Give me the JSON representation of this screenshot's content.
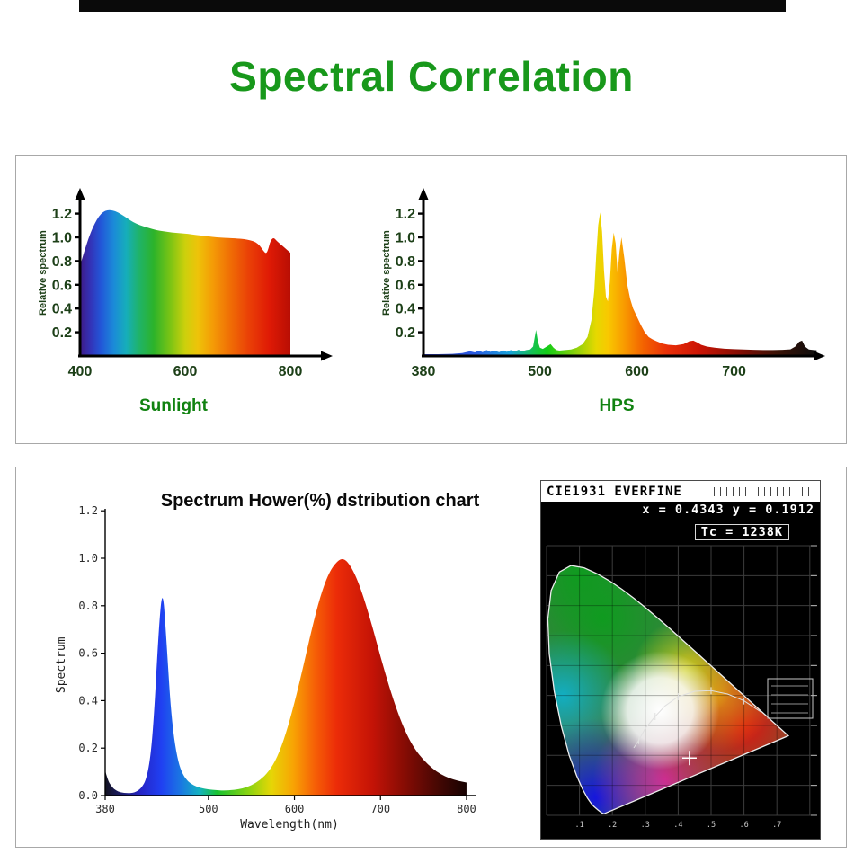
{
  "page_title": "Spectral Correlation",
  "colors": {
    "title_green": "#18981b",
    "caption_green": "#118211",
    "tick_green": "#1c3f17"
  },
  "chart_data": [
    {
      "type": "area",
      "title": "Sunlight",
      "xlabel": "",
      "ylabel": "Relative spectrum",
      "xlim": [
        400,
        860
      ],
      "ylim": [
        0,
        1.35
      ],
      "x_tick_labels": [
        "400",
        "600",
        "800"
      ],
      "y_tick_labels": [
        "0.2",
        "0.4",
        "0.6",
        "0.8",
        "1.0",
        "1.2"
      ],
      "x": [
        400,
        408,
        416,
        424,
        432,
        440,
        448,
        456,
        464,
        472,
        480,
        490,
        500,
        515,
        530,
        545,
        560,
        575,
        590,
        605,
        620,
        640,
        660,
        680,
        700,
        712,
        724,
        734,
        742,
        748,
        754,
        758,
        762,
        768,
        774,
        782,
        792,
        800
      ],
      "y": [
        0.76,
        0.88,
        0.99,
        1.08,
        1.15,
        1.2,
        1.225,
        1.23,
        1.225,
        1.21,
        1.19,
        1.16,
        1.13,
        1.1,
        1.08,
        1.06,
        1.05,
        1.04,
        1.035,
        1.03,
        1.02,
        1.01,
        1.0,
        0.995,
        0.99,
        0.985,
        0.975,
        0.96,
        0.93,
        0.89,
        0.86,
        0.9,
        0.97,
        1.0,
        0.97,
        0.94,
        0.9,
        0.87
      ]
    },
    {
      "type": "area",
      "title": "HPS",
      "xlabel": "",
      "ylabel": "Relative spectrum",
      "xlim": [
        380,
        800
      ],
      "ylim": [
        0,
        1.35
      ],
      "x_tick_labels": [
        "380",
        "500",
        "600",
        "700"
      ],
      "y_tick_labels": [
        "0.2",
        "0.4",
        "0.6",
        "0.8",
        "1.0",
        "1.2"
      ],
      "x": [
        380,
        395,
        410,
        420,
        428,
        433,
        437,
        441,
        445,
        449,
        453,
        458,
        462,
        466,
        470,
        474,
        478,
        482,
        486,
        490,
        493,
        496,
        498,
        500,
        503,
        507,
        511,
        514,
        517,
        520,
        526,
        532,
        538,
        544,
        549,
        553,
        556,
        558,
        560,
        562,
        564,
        566,
        568,
        570,
        572,
        574,
        576,
        578,
        580,
        582,
        584,
        587,
        590,
        593,
        596,
        600,
        604,
        608,
        612,
        616,
        620,
        626,
        632,
        640,
        648,
        654,
        658,
        662,
        666,
        672,
        680,
        690,
        700,
        710,
        720,
        730,
        740,
        750,
        758,
        763,
        767,
        770,
        773,
        777,
        782,
        785
      ],
      "y": [
        0.015,
        0.015,
        0.018,
        0.025,
        0.04,
        0.03,
        0.045,
        0.032,
        0.05,
        0.035,
        0.045,
        0.032,
        0.048,
        0.035,
        0.05,
        0.038,
        0.052,
        0.04,
        0.05,
        0.055,
        0.08,
        0.22,
        0.12,
        0.07,
        0.06,
        0.08,
        0.1,
        0.07,
        0.05,
        0.045,
        0.05,
        0.055,
        0.07,
        0.1,
        0.16,
        0.3,
        0.55,
        0.85,
        1.1,
        1.21,
        1.05,
        0.72,
        0.5,
        0.46,
        0.62,
        0.9,
        1.04,
        0.95,
        0.7,
        0.88,
        1.0,
        0.82,
        0.6,
        0.48,
        0.4,
        0.33,
        0.26,
        0.2,
        0.16,
        0.14,
        0.125,
        0.105,
        0.095,
        0.09,
        0.1,
        0.125,
        0.13,
        0.115,
        0.095,
        0.08,
        0.07,
        0.062,
        0.058,
        0.055,
        0.052,
        0.05,
        0.05,
        0.052,
        0.056,
        0.08,
        0.12,
        0.13,
        0.08,
        0.055,
        0.05,
        0.048
      ]
    },
    {
      "type": "area",
      "title": "Spectrum Hower(%) dstribution chart",
      "xlabel": "Wavelength(nm)",
      "ylabel": "Spectrum",
      "xlim": [
        380,
        800
      ],
      "ylim": [
        0,
        1.2
      ],
      "x_tick_labels": [
        "380",
        "500",
        "600",
        "700",
        "800"
      ],
      "y_tick_labels": [
        "0.0",
        "0.2",
        "0.4",
        "0.6",
        "0.8",
        "1.0",
        "1.2"
      ],
      "x": [
        380,
        383,
        387,
        392,
        398,
        406,
        414,
        422,
        428,
        433,
        437,
        441,
        444,
        446,
        448,
        450,
        453,
        456,
        460,
        465,
        470,
        476,
        483,
        491,
        500,
        510,
        520,
        530,
        540,
        550,
        560,
        570,
        580,
        590,
        600,
        610,
        620,
        630,
        640,
        650,
        657,
        664,
        672,
        680,
        690,
        700,
        710,
        720,
        730,
        740,
        750,
        760,
        770,
        780,
        790,
        800
      ],
      "y": [
        0.105,
        0.065,
        0.04,
        0.022,
        0.013,
        0.01,
        0.012,
        0.03,
        0.07,
        0.17,
        0.35,
        0.62,
        0.78,
        0.84,
        0.82,
        0.72,
        0.55,
        0.38,
        0.24,
        0.14,
        0.09,
        0.06,
        0.042,
        0.032,
        0.026,
        0.022,
        0.021,
        0.024,
        0.03,
        0.043,
        0.065,
        0.1,
        0.16,
        0.26,
        0.39,
        0.54,
        0.7,
        0.84,
        0.94,
        0.99,
        1.0,
        0.975,
        0.92,
        0.84,
        0.72,
        0.585,
        0.46,
        0.35,
        0.26,
        0.195,
        0.15,
        0.115,
        0.09,
        0.073,
        0.062,
        0.055
      ]
    },
    {
      "type": "scatter",
      "title": "CIE1931 chromaticity diagram",
      "header": "CIE1931 EVERFINE",
      "readout_xy": "x = 0.4343  y = 0.1912",
      "readout_tc": "Tc = 1238K",
      "point": {
        "x": 0.4343,
        "y": 0.1912
      },
      "xlim": [
        0,
        0.8
      ],
      "ylim": [
        0,
        0.9
      ],
      "x_tick_labels": [
        ".1",
        ".2",
        ".3",
        ".4",
        ".5",
        ".6",
        ".7"
      ],
      "grid": true
    }
  ]
}
